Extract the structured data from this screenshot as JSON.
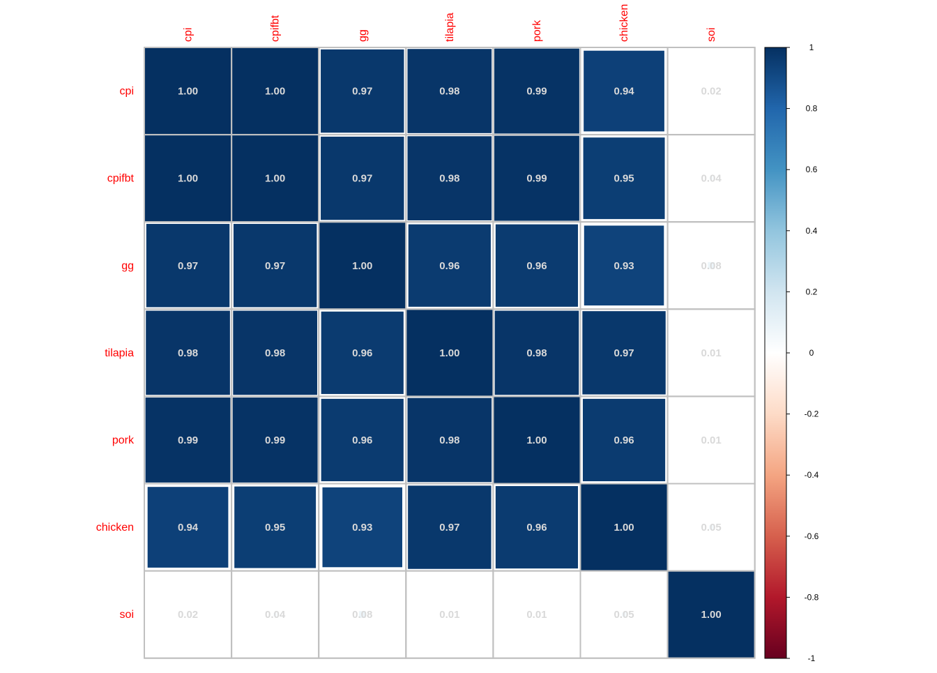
{
  "chart_data": {
    "type": "heatmap",
    "variables": [
      "cpi",
      "cpifbt",
      "gg",
      "tilapia",
      "pork",
      "chicken",
      "soi"
    ],
    "matrix": [
      [
        1.0,
        1.0,
        0.97,
        0.98,
        0.99,
        0.94,
        0.02
      ],
      [
        1.0,
        1.0,
        0.97,
        0.98,
        0.99,
        0.95,
        0.04
      ],
      [
        0.97,
        0.97,
        1.0,
        0.96,
        0.96,
        0.93,
        0.08
      ],
      [
        0.98,
        0.98,
        0.96,
        1.0,
        0.98,
        0.97,
        0.01
      ],
      [
        0.99,
        0.99,
        0.96,
        0.98,
        1.0,
        0.96,
        0.01
      ],
      [
        0.94,
        0.95,
        0.93,
        0.97,
        0.96,
        1.0,
        0.05
      ],
      [
        0.02,
        0.04,
        0.08,
        0.01,
        0.01,
        0.05,
        1.0
      ]
    ],
    "labels": [
      [
        "1.00",
        "1.00",
        "0.97",
        "0.98",
        "0.99",
        "0.94",
        "0.02"
      ],
      [
        "1.00",
        "1.00",
        "0.97",
        "0.98",
        "0.99",
        "0.95",
        "0.04"
      ],
      [
        "0.97",
        "0.97",
        "1.00",
        "0.96",
        "0.96",
        "0.93",
        "0.08"
      ],
      [
        "0.98",
        "0.98",
        "0.96",
        "1.00",
        "0.98",
        "0.97",
        "0.01"
      ],
      [
        "0.99",
        "0.99",
        "0.96",
        "0.98",
        "1.00",
        "0.96",
        "0.01"
      ],
      [
        "0.94",
        "0.95",
        "0.93",
        "0.97",
        "0.96",
        "1.00",
        "0.05"
      ],
      [
        "0.02",
        "0.04",
        "0.08",
        "0.01",
        "0.01",
        "0.05",
        "1.00"
      ]
    ],
    "colorbar": {
      "range": [
        -1,
        1
      ],
      "ticks": [
        "1",
        "0.8",
        "0.6",
        "0.4",
        "0.2",
        "0",
        "-0.2",
        "-0.4",
        "-0.6",
        "-0.8",
        "-1"
      ],
      "stops": [
        "#67001f",
        "#b2182b",
        "#d6604d",
        "#f4a582",
        "#fddbc7",
        "#ffffff",
        "#d1e5f0",
        "#92c5de",
        "#4393c3",
        "#2166ac",
        "#053061"
      ]
    },
    "colors": {
      "label": "#ff0000",
      "grid": "#c0c0c0",
      "cell_text": "#d9d9d9"
    }
  }
}
